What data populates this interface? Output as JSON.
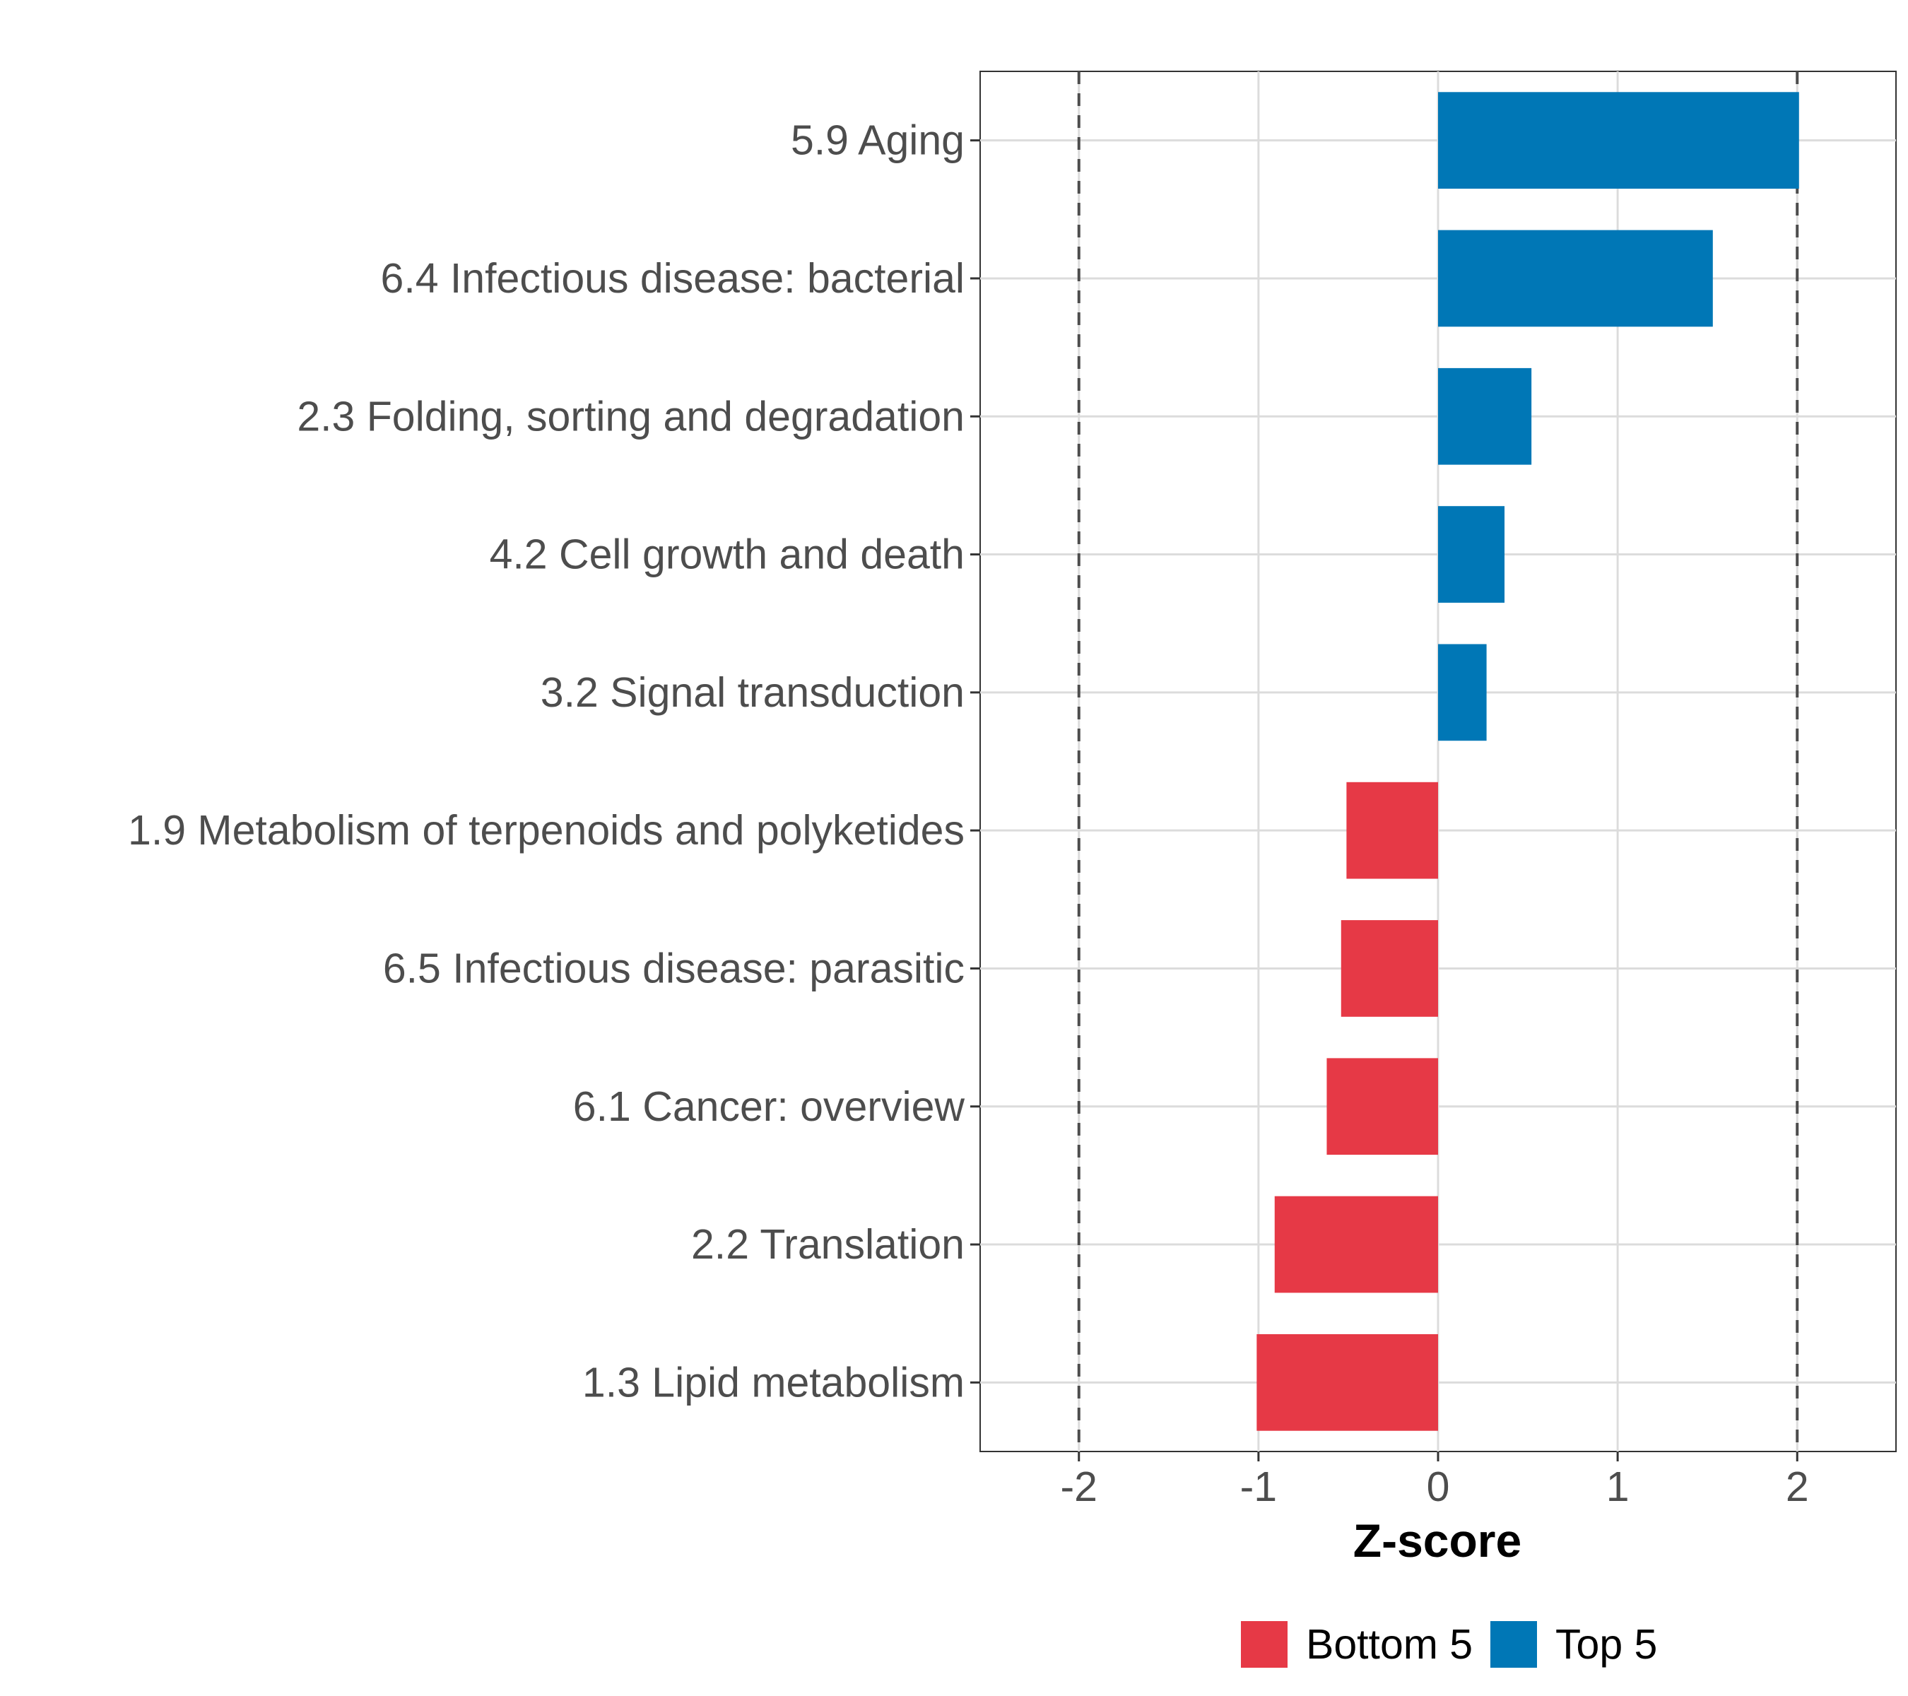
{
  "chart_data": {
    "type": "bar",
    "orientation": "horizontal",
    "title": "",
    "xlabel": "Z-score",
    "ylabel": "",
    "xlim": [
      -2.55,
      2.55
    ],
    "xticks": [
      "-2",
      "-1",
      "0",
      "1",
      "2"
    ],
    "xtick_values": [
      -2,
      -1,
      0,
      1,
      2
    ],
    "reference_lines": [
      -2,
      2
    ],
    "grid": true,
    "categories": [
      "5.9 Aging",
      "6.4 Infectious disease: bacterial",
      "2.3 Folding, sorting and degradation",
      "4.2 Cell growth and death",
      "3.2 Signal transduction",
      "1.9 Metabolism of terpenoids and polyketides",
      "6.5 Infectious disease: parasitic",
      "6.1 Cancer: overview",
      "2.2 Translation",
      "1.3 Lipid metabolism"
    ],
    "values": [
      2.01,
      1.53,
      0.52,
      0.37,
      0.27,
      -0.51,
      -0.54,
      -0.62,
      -0.91,
      -1.01
    ],
    "groups": [
      "Top 5",
      "Top 5",
      "Top 5",
      "Top 5",
      "Top 5",
      "Bottom 5",
      "Bottom 5",
      "Bottom 5",
      "Bottom 5",
      "Bottom 5"
    ],
    "colors": {
      "Bottom 5": "#e63946",
      "Top 5": "#0077b6"
    },
    "legend": {
      "position": "bottom",
      "entries": [
        "Bottom 5",
        "Top 5"
      ]
    }
  }
}
